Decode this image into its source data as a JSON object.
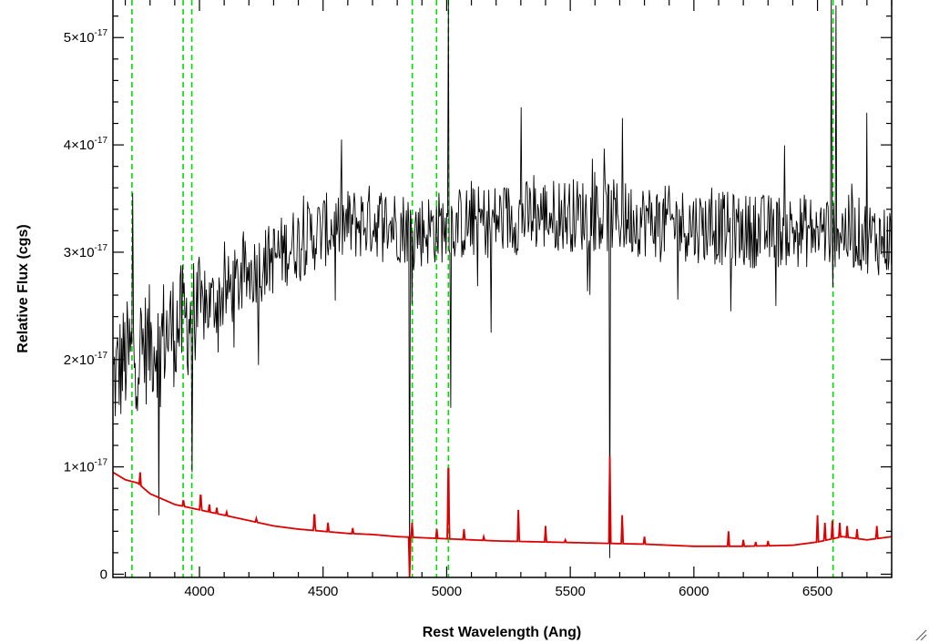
{
  "chart_data": {
    "type": "line",
    "title": "",
    "xlabel": "Rest Wavelength (Ang)",
    "ylabel": "Relative Flux (cgs)",
    "xlim": [
      3650,
      6800
    ],
    "ylim": [
      -3e-19,
      5.35e-17
    ],
    "x_ticks": [
      4000,
      4500,
      5000,
      5500,
      6000,
      6500
    ],
    "x_tick_labels": [
      "4000",
      "4500",
      "5000",
      "5500",
      "6000",
      "6500"
    ],
    "y_ticks": [
      0,
      1e-17,
      2e-17,
      3e-17,
      4e-17,
      5e-17
    ],
    "y_tick_labels": [
      {
        "mantissa": "0",
        "exp": ""
      },
      {
        "mantissa": "1×10",
        "exp": "-17"
      },
      {
        "mantissa": "2×10",
        "exp": "-17"
      },
      {
        "mantissa": "3×10",
        "exp": "-17"
      },
      {
        "mantissa": "4×10",
        "exp": "-17"
      },
      {
        "mantissa": "5×10",
        "exp": "-17"
      }
    ],
    "grid": false,
    "legend": "none",
    "series": [
      {
        "style": "black-noisy-spectrum",
        "color": "#000000",
        "continuum_x": [
          3650,
          3700,
          3800,
          3900,
          4000,
          4100,
          4200,
          4300,
          4400,
          4500,
          4600,
          4700,
          4800,
          4900,
          5000,
          5200,
          5400,
          5600,
          5800,
          6000,
          6200,
          6400,
          6600,
          6800
        ],
        "continuum_y": [
          1.8e-17,
          2e-17,
          2.15e-17,
          2.3e-17,
          2.45e-17,
          2.6e-17,
          2.8e-17,
          2.95e-17,
          3.1e-17,
          3.2e-17,
          3.25e-17,
          3.3e-17,
          3.25e-17,
          3.2e-17,
          3.25e-17,
          3.3e-17,
          3.35e-17,
          3.35e-17,
          3.3e-17,
          3.25e-17,
          3.2e-17,
          3.2e-17,
          3.2e-17,
          3.1e-17
        ],
        "noise_amplitude": 3.5e-18,
        "features": [
          {
            "x": 3730,
            "y": 3.55e-17
          },
          {
            "x": 3835,
            "y": 5.5e-18
          },
          {
            "x": 3970,
            "y": 9.5e-18
          },
          {
            "x": 4240,
            "y": 1.95e-17
          },
          {
            "x": 4550,
            "y": 2.55e-17
          },
          {
            "x": 4850,
            "y": -3e-19
          },
          {
            "x": 5007,
            "y": 5.35e-17
          },
          {
            "x": 5015,
            "y": 1.55e-17
          },
          {
            "x": 5180,
            "y": 2.25e-17
          },
          {
            "x": 5300,
            "y": 4.35e-17
          },
          {
            "x": 5660,
            "y": 1.5e-18
          },
          {
            "x": 5710,
            "y": 4.25e-17
          },
          {
            "x": 6150,
            "y": 2.45e-17
          },
          {
            "x": 6330,
            "y": 2.5e-17
          },
          {
            "x": 6555,
            "y": 5.35e-17
          },
          {
            "x": 6575,
            "y": 5.3e-17
          },
          {
            "x": 6700,
            "y": 4.3e-17
          }
        ]
      },
      {
        "style": "red-model-spectrum",
        "color": "#dd0000",
        "continuum_x": [
          3650,
          3700,
          3750,
          3800,
          3900,
          4000,
          4100,
          4200,
          4300,
          4400,
          4500,
          4600,
          4700,
          4800,
          4900,
          5000,
          5200,
          5400,
          5600,
          5800,
          6000,
          6200,
          6400,
          6500,
          6600,
          6700,
          6800
        ],
        "continuum_y": [
          9.5e-18,
          8.8e-18,
          8.5e-18,
          7.5e-18,
          6.5e-18,
          6e-18,
          5.5e-18,
          5e-18,
          4.5e-18,
          4.2e-18,
          4e-18,
          3.8e-18,
          3.7e-18,
          3.5e-18,
          3.4e-18,
          3.3e-18,
          3.1e-18,
          3e-18,
          2.9e-18,
          2.8e-18,
          2.6e-18,
          2.6e-18,
          2.7e-18,
          3e-18,
          3.5e-18,
          3.2e-18,
          3.5e-18
        ],
        "emission_lines": [
          {
            "x": 3760,
            "y": 9.5e-18
          },
          {
            "x": 3935,
            "y": 7e-18
          },
          {
            "x": 4005,
            "y": 7.8e-18
          },
          {
            "x": 4040,
            "y": 6.5e-18
          },
          {
            "x": 4070,
            "y": 6.2e-18
          },
          {
            "x": 4110,
            "y": 5.8e-18
          },
          {
            "x": 4230,
            "y": 5.2e-18
          },
          {
            "x": 4465,
            "y": 6e-18
          },
          {
            "x": 4520,
            "y": 4.8e-18
          },
          {
            "x": 4620,
            "y": 4.3e-18
          },
          {
            "x": 4850,
            "y": -3e-19
          },
          {
            "x": 4860,
            "y": 4.8e-18
          },
          {
            "x": 4960,
            "y": 4.2e-18
          },
          {
            "x": 5007,
            "y": 1.2e-17
          },
          {
            "x": 5070,
            "y": 4.2e-18
          },
          {
            "x": 5150,
            "y": 3.5e-18
          },
          {
            "x": 5290,
            "y": 6e-18
          },
          {
            "x": 5400,
            "y": 4.5e-18
          },
          {
            "x": 5480,
            "y": 3.2e-18
          },
          {
            "x": 5660,
            "y": 1.1e-17
          },
          {
            "x": 5710,
            "y": 5.5e-18
          },
          {
            "x": 5800,
            "y": 3.5e-18
          },
          {
            "x": 6140,
            "y": 4e-18
          },
          {
            "x": 6200,
            "y": 3.2e-18
          },
          {
            "x": 6250,
            "y": 3e-18
          },
          {
            "x": 6300,
            "y": 3.1e-18
          },
          {
            "x": 6500,
            "y": 5.5e-18
          },
          {
            "x": 6530,
            "y": 4.8e-18
          },
          {
            "x": 6560,
            "y": 5e-18
          },
          {
            "x": 6590,
            "y": 4.8e-18
          },
          {
            "x": 6620,
            "y": 4.5e-18
          },
          {
            "x": 6660,
            "y": 4.2e-18
          },
          {
            "x": 6740,
            "y": 4.5e-18
          }
        ]
      }
    ],
    "reference_lines": {
      "color": "#00dd00",
      "style": "dashed",
      "x": [
        3727,
        3934,
        3969,
        4861,
        4959,
        5007,
        6563
      ]
    }
  }
}
